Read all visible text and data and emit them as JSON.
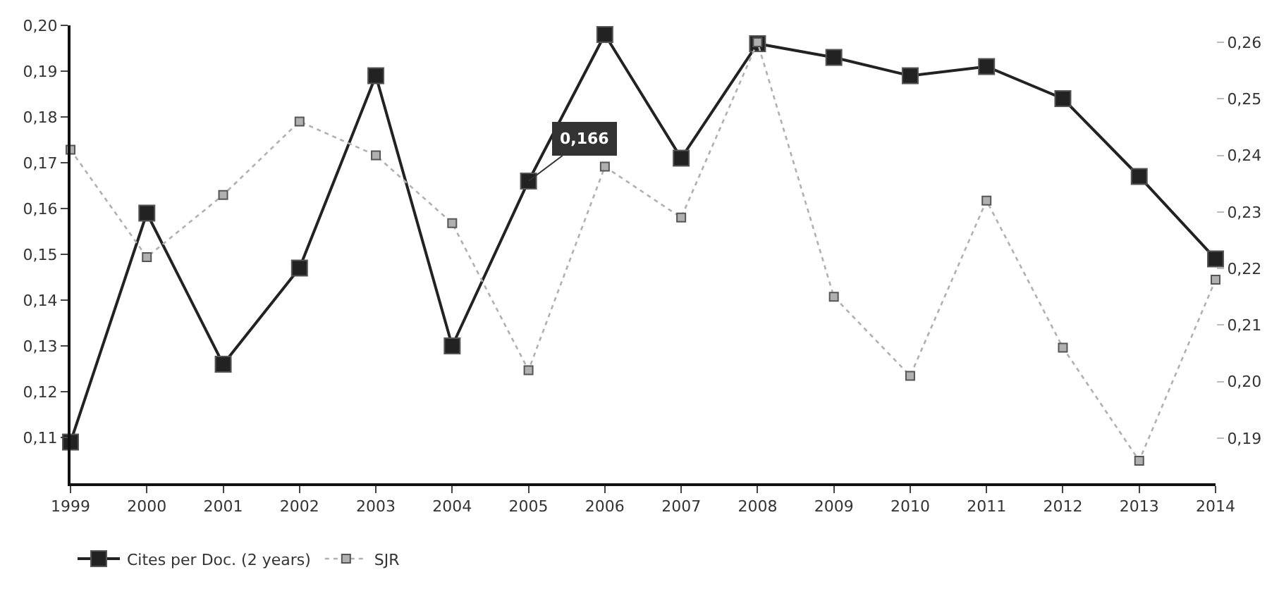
{
  "chart_data": {
    "type": "line",
    "categories": [
      "1999",
      "2000",
      "2001",
      "2002",
      "2003",
      "2004",
      "2005",
      "2006",
      "2007",
      "2008",
      "2009",
      "2010",
      "2011",
      "2012",
      "2013",
      "2014"
    ],
    "series": [
      {
        "name": "Cites per Doc. (2 years)",
        "color": "#222222",
        "line_style": "solid",
        "values": [
          0.109,
          0.159,
          0.126,
          0.147,
          0.189,
          0.13,
          0.166,
          0.198,
          0.171,
          0.196,
          0.193,
          0.189,
          0.191,
          0.184,
          0.167,
          0.149
        ]
      },
      {
        "name": "SJR",
        "color": "#b0b0b0",
        "line_style": "dotted",
        "axis": "y2",
        "values": [
          0.241,
          0.222,
          0.233,
          0.246,
          0.24,
          0.228,
          0.202,
          0.238,
          0.229,
          0.26,
          0.215,
          0.201,
          0.232,
          0.206,
          0.186,
          0.218
        ]
      }
    ],
    "marker": "square",
    "ylim": [
      0.1,
      0.2
    ],
    "yticks": [
      {
        "value": 0.11,
        "label": "0,11"
      },
      {
        "value": 0.12,
        "label": "0,12"
      },
      {
        "value": 0.13,
        "label": "0,13"
      },
      {
        "value": 0.14,
        "label": "0,14"
      },
      {
        "value": 0.15,
        "label": "0,15"
      },
      {
        "value": 0.16,
        "label": "0,16"
      },
      {
        "value": 0.17,
        "label": "0,17"
      },
      {
        "value": 0.18,
        "label": "0,18"
      },
      {
        "value": 0.19,
        "label": "0,19"
      },
      {
        "value": 0.2,
        "label": "0,20"
      }
    ],
    "y2lim": [
      0.182,
      0.263
    ],
    "y2ticks": [
      {
        "value": 0.19,
        "label": "0,19"
      },
      {
        "value": 0.2,
        "label": "0,20"
      },
      {
        "value": 0.21,
        "label": "0,21"
      },
      {
        "value": 0.22,
        "label": "0,22"
      },
      {
        "value": 0.23,
        "label": "0,23"
      },
      {
        "value": 0.24,
        "label": "0,24"
      },
      {
        "value": 0.25,
        "label": "0,25"
      },
      {
        "value": 0.26,
        "label": "0,26"
      }
    ],
    "annotations": [
      {
        "text": "0,166",
        "x": "2005",
        "y": 0.166
      }
    ],
    "legend": "bottom left"
  }
}
